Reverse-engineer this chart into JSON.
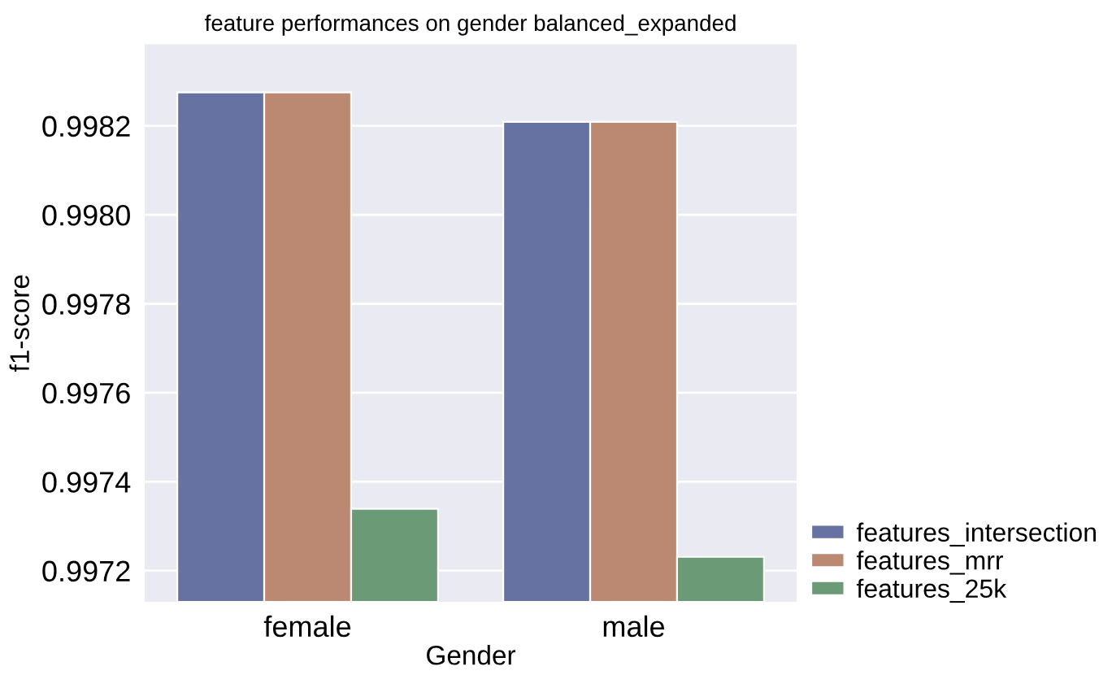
{
  "chart_data": {
    "type": "bar",
    "title": "feature performances on gender balanced_expanded",
    "xlabel": "Gender",
    "ylabel": "f1-score",
    "categories": [
      "female",
      "male"
    ],
    "series": [
      {
        "name": "features_intersection",
        "color": "#6673a2",
        "values": [
          0.998275,
          0.998209
        ]
      },
      {
        "name": "features_mrr",
        "color": "#bb8872",
        "values": [
          0.998275,
          0.998209
        ]
      },
      {
        "name": "features_25k",
        "color": "#6b9a76",
        "values": [
          0.997339,
          0.997231
        ]
      }
    ],
    "ylim": [
      0.99713,
      0.998383
    ],
    "yticks": [
      {
        "value": 0.9972,
        "label": "0.9972"
      },
      {
        "value": 0.9974,
        "label": "0.9974"
      },
      {
        "value": 0.9976,
        "label": "0.9976"
      },
      {
        "value": 0.9978,
        "label": "0.9978"
      },
      {
        "value": 0.998,
        "label": "0.9980"
      },
      {
        "value": 0.9982,
        "label": "0.9982"
      }
    ],
    "grid": "y",
    "legend": "bottom right"
  }
}
